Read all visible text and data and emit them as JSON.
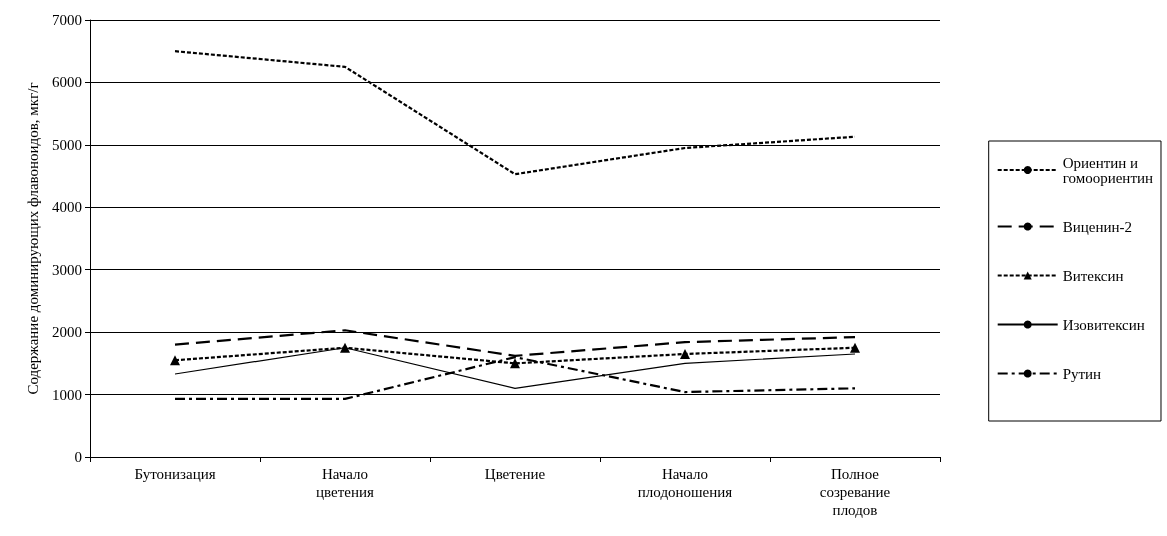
{
  "chart_data": {
    "type": "line",
    "ylabel": "Содержание доминирующих флавоноидов, мкг/г",
    "categories": [
      "Бутонизация",
      "Начало цветения",
      "Цветение",
      "Начало плодоношения",
      "Полное созревание плодов"
    ],
    "series": [
      {
        "name": "Ориентин и гомоориентин",
        "color": "#000000",
        "line_style": "dotted",
        "marker": "none",
        "values": [
          6500,
          6250,
          4530,
          4950,
          5130
        ]
      },
      {
        "name": "Виценин-2",
        "color": "#000000",
        "line_style": "dashed",
        "marker": "none",
        "values": [
          1800,
          2030,
          1620,
          1840,
          1920
        ]
      },
      {
        "name": "Витексин",
        "color": "#000000",
        "line_style": "dotted",
        "marker": "triangle",
        "values": [
          1550,
          1750,
          1500,
          1650,
          1750
        ]
      },
      {
        "name": "Изовитексин",
        "color": "#000000",
        "line_style": "solid",
        "marker": "none",
        "values": [
          1330,
          1750,
          1100,
          1500,
          1650
        ]
      },
      {
        "name": "Рутин",
        "color": "#000000",
        "line_style": "dashdot",
        "marker": "none",
        "values": [
          930,
          930,
          1600,
          1040,
          1100
        ]
      }
    ],
    "ylim": [
      0,
      7000
    ],
    "yticks": [
      0,
      1000,
      2000,
      3000,
      4000,
      5000,
      6000,
      7000
    ],
    "grid": "y",
    "legend": "right"
  }
}
